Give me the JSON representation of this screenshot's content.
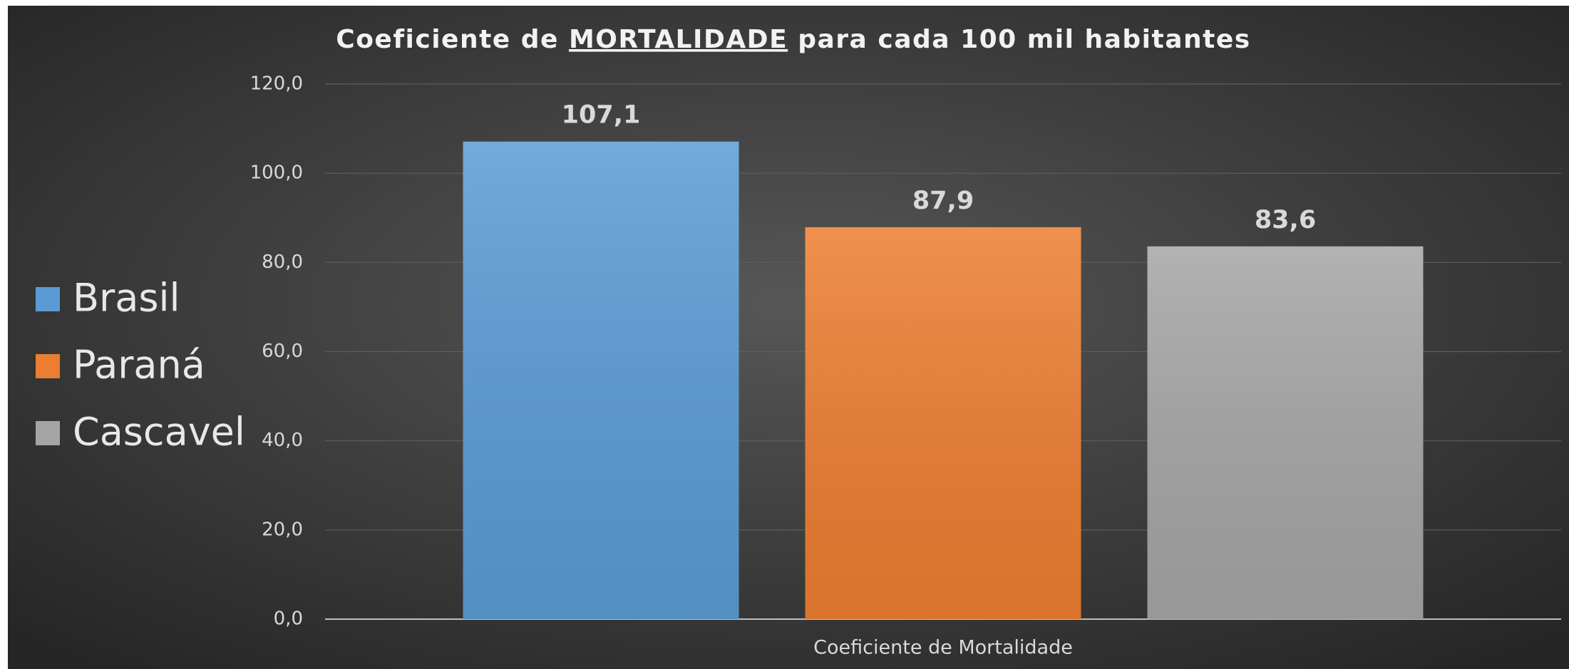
{
  "chart_data": {
    "type": "bar",
    "title": [
      "Coeficiente de ",
      "MORTALIDADE",
      " para cada 100 mil habitantes"
    ],
    "categories": [
      "Coeficiente de Mortalidade"
    ],
    "series": [
      {
        "name": "Brasil",
        "color": "#5b9bd5",
        "values": [
          107.1
        ],
        "value_labels": [
          "107,1"
        ]
      },
      {
        "name": "Paraná",
        "color": "#ed7d31",
        "values": [
          87.9
        ],
        "value_labels": [
          "87,9"
        ]
      },
      {
        "name": "Cascavel",
        "color": "#a5a5a5",
        "values": [
          83.6
        ],
        "value_labels": [
          "83,6"
        ]
      }
    ],
    "ylim": [
      0,
      120
    ],
    "yticks": [
      {
        "value": 0,
        "label": "0,0"
      },
      {
        "value": 20,
        "label": "20,0"
      },
      {
        "value": 40,
        "label": "40,0"
      },
      {
        "value": 60,
        "label": "60,0"
      },
      {
        "value": 80,
        "label": "80,0"
      },
      {
        "value": 100,
        "label": "100,0"
      },
      {
        "value": 120,
        "label": "120,0"
      }
    ],
    "grid": true,
    "legend": "left"
  }
}
